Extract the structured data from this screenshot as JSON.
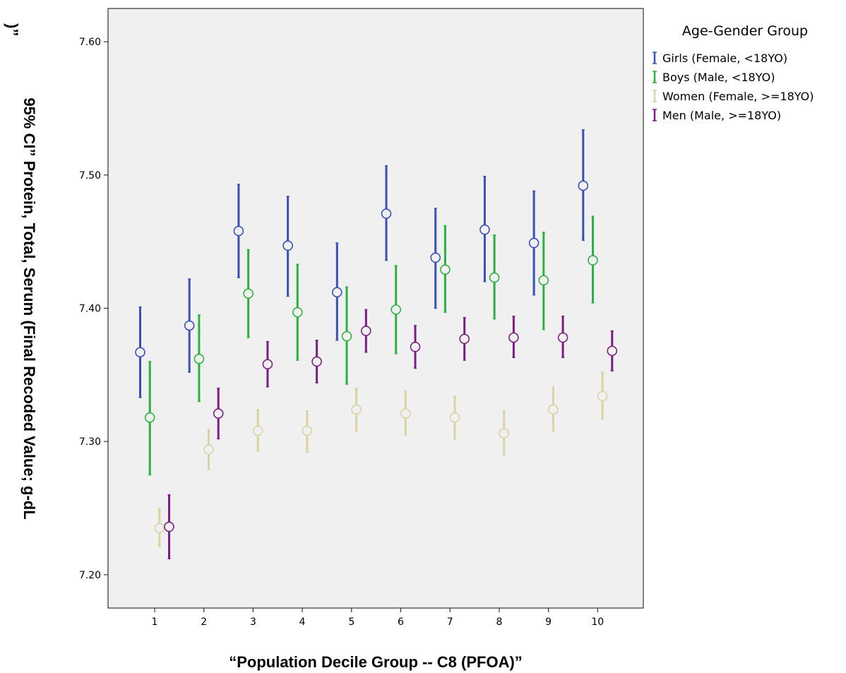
{
  "chart_data": {
    "type": "scatter",
    "subtype": "error-bar",
    "xlabel": "“Population Decile Group --  C8 (PFOA)”",
    "ylabel_line1": "95% CI” Protein, Total, Serum (Final Recoded Value; g-dL",
    "ylabel_line2": ")”",
    "categories": [
      "1",
      "2",
      "3",
      "4",
      "5",
      "6",
      "7",
      "8",
      "9",
      "10"
    ],
    "yticks": [
      "7.20",
      "7.30",
      "7.40",
      "7.50",
      "7.60"
    ],
    "ylim": [
      7.175,
      7.625
    ],
    "grid": false,
    "legend": {
      "title": "Age-Gender Group",
      "position": "right-top"
    },
    "series": [
      {
        "name": "Girls (Female, <18YO)",
        "color": "#3a50b4",
        "mean": [
          7.367,
          7.387,
          7.458,
          7.447,
          7.412,
          7.471,
          7.438,
          7.459,
          7.449,
          7.492
        ],
        "lower": [
          7.333,
          7.352,
          7.423,
          7.409,
          7.376,
          7.436,
          7.4,
          7.42,
          7.41,
          7.451
        ],
        "upper": [
          7.401,
          7.422,
          7.493,
          7.484,
          7.449,
          7.507,
          7.475,
          7.499,
          7.488,
          7.534
        ]
      },
      {
        "name": "Boys (Male, <18YO)",
        "color": "#2db042",
        "mean": [
          7.318,
          7.362,
          7.411,
          7.397,
          7.379,
          7.399,
          7.429,
          7.423,
          7.421,
          7.436
        ],
        "lower": [
          7.275,
          7.33,
          7.378,
          7.361,
          7.343,
          7.366,
          7.397,
          7.392,
          7.384,
          7.404
        ],
        "upper": [
          7.36,
          7.395,
          7.444,
          7.433,
          7.416,
          7.432,
          7.462,
          7.455,
          7.457,
          7.469
        ]
      },
      {
        "name": "Women (Female, >=18YO)",
        "color": "#d9d3a2",
        "mean": [
          7.235,
          7.294,
          7.308,
          7.308,
          7.324,
          7.321,
          7.318,
          7.306,
          7.324,
          7.334
        ],
        "lower": [
          7.221,
          7.279,
          7.293,
          7.292,
          7.308,
          7.305,
          7.302,
          7.29,
          7.308,
          7.317
        ],
        "upper": [
          7.25,
          7.309,
          7.324,
          7.323,
          7.34,
          7.338,
          7.334,
          7.323,
          7.341,
          7.352
        ]
      },
      {
        "name": "Men (Male, >=18YO)",
        "color": "#7a1e84",
        "mean": [
          7.236,
          7.321,
          7.358,
          7.36,
          7.383,
          7.371,
          7.377,
          7.378,
          7.378,
          7.368
        ],
        "lower": [
          7.212,
          7.302,
          7.341,
          7.344,
          7.367,
          7.355,
          7.361,
          7.363,
          7.363,
          7.353
        ],
        "upper": [
          7.26,
          7.34,
          7.375,
          7.376,
          7.399,
          7.387,
          7.393,
          7.394,
          7.394,
          7.383
        ]
      }
    ]
  }
}
